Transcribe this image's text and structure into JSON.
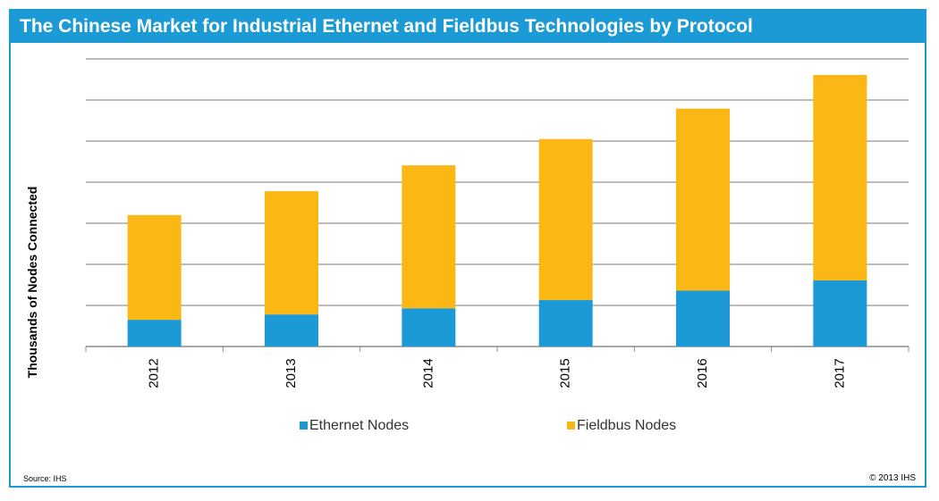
{
  "page": {
    "title": "The Chinese Market for Industrial Ethernet and Fieldbus Technologies by Protocol",
    "source": "Source:  IHS",
    "copyright": "© 2013 IHS"
  },
  "chart_data": {
    "type": "bar",
    "stacked": true,
    "title": "The Chinese Market for Industrial Ethernet and Fieldbus Technologies by Protocol",
    "xlabel": "",
    "ylabel": "Thousands of Nodes Connected",
    "ylim": [
      0,
      7
    ],
    "grid": true,
    "y_tick_labels_shown": false,
    "categories": [
      "2012",
      "2013",
      "2014",
      "2015",
      "2016",
      "2017"
    ],
    "series": [
      {
        "name": "Ethernet Nodes",
        "color": "#1c9ad6",
        "values": [
          0.65,
          0.78,
          0.93,
          1.13,
          1.36,
          1.61
        ]
      },
      {
        "name": "Fieldbus Nodes",
        "color": "#fbb713",
        "values": [
          2.55,
          3.0,
          3.48,
          3.92,
          4.43,
          5.0
        ]
      }
    ],
    "legend": {
      "position": "bottom"
    }
  }
}
